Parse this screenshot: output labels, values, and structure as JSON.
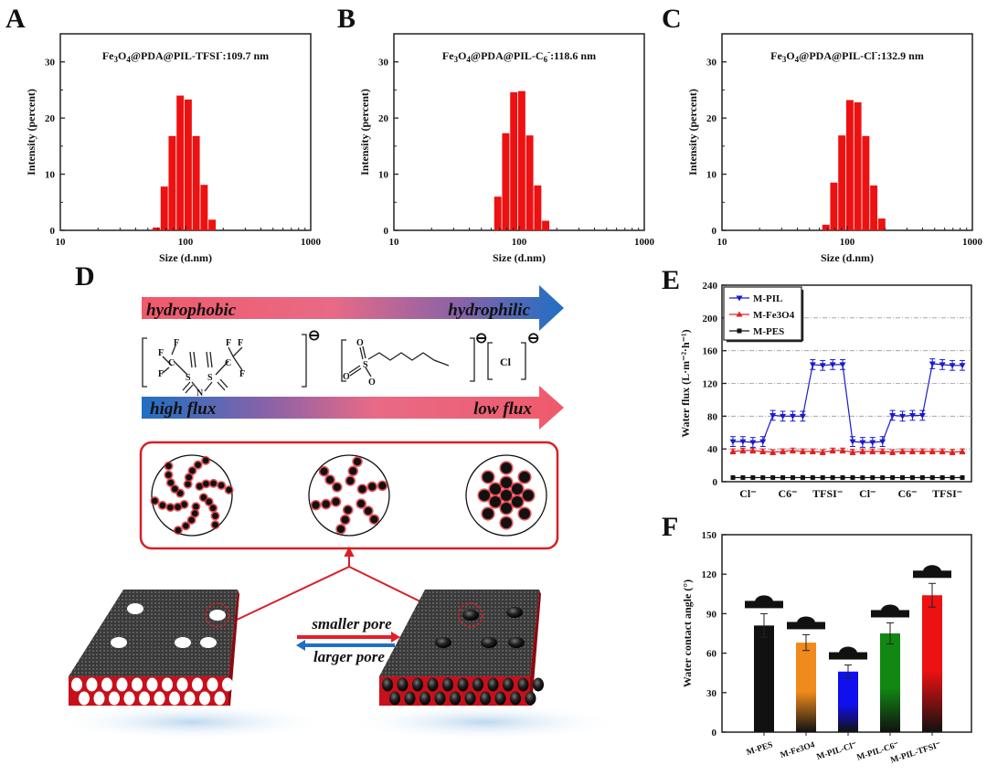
{
  "panels": {
    "A": "A",
    "B": "B",
    "C": "C",
    "D": "D",
    "E": "E",
    "F": "F"
  },
  "chart_data": [
    {
      "id": "A",
      "type": "bar",
      "title": "Fe3O4@PDA@PIL-TFSI⁻:109.7 nm",
      "title_parts": {
        "pre": "Fe",
        "s1": "3",
        "mid": "O",
        "s2": "4",
        "post": "@PDA@PIL-TFSI",
        "sup": "-",
        "tail": ":109.7 nm"
      },
      "xlabel": "Size (d.nm)",
      "ylabel": "Intensity (percent)",
      "xscale": "log",
      "xlim": [
        10,
        1000
      ],
      "ylim": [
        0,
        35
      ],
      "xticks": [
        "10",
        "100",
        "1000"
      ],
      "yticks": [
        0,
        10,
        20,
        30
      ],
      "bar_color": "#ee1111",
      "x": [
        58.8,
        68.1,
        78.8,
        91.3,
        105.7,
        122.4,
        141.8,
        164.2
      ],
      "values": [
        0.5,
        7.8,
        16.8,
        24.0,
        23.3,
        16.8,
        8.1,
        1.9
      ]
    },
    {
      "id": "B",
      "type": "bar",
      "title": "Fe3O4@PDA@PIL-C6⁻:118.6 nm",
      "title_parts": {
        "pre": "Fe",
        "s1": "3",
        "mid": "O",
        "s2": "4",
        "post": "@PDA@PIL-C",
        "sub6": "6",
        "sup": "-",
        "tail": ":118.6 nm"
      },
      "xlabel": "Size (d.nm)",
      "ylabel": "Intensity (percent)",
      "xscale": "log",
      "xlim": [
        10,
        1000
      ],
      "ylim": [
        0,
        35
      ],
      "xticks": [
        "10",
        "100",
        "1000"
      ],
      "yticks": [
        0,
        10,
        20,
        30
      ],
      "bar_color": "#ee1111",
      "x": [
        68.1,
        78.8,
        91.3,
        105.7,
        122.4,
        141.8,
        164.2
      ],
      "values": [
        6.0,
        17.3,
        24.6,
        24.8,
        16.9,
        8.0,
        1.7
      ]
    },
    {
      "id": "C",
      "type": "bar",
      "title": "Fe3O4@PDA@PIL-Cl⁻:132.9 nm",
      "title_parts": {
        "pre": "Fe",
        "s1": "3",
        "mid": "O",
        "s2": "4",
        "post": "@PDA@PIL-Cl",
        "sup": "-",
        "tail": ":132.9 nm"
      },
      "xlabel": "Size (d.nm)",
      "ylabel": "Intensity (percent)",
      "xscale": "log",
      "xlim": [
        10,
        1000
      ],
      "ylim": [
        0,
        35
      ],
      "xticks": [
        "10",
        "100",
        "1000"
      ],
      "yticks": [
        0,
        10,
        20,
        30
      ],
      "bar_color": "#ee1111",
      "x": [
        68.1,
        78.8,
        91.3,
        105.7,
        122.4,
        141.8,
        164.2,
        190.1
      ],
      "values": [
        1.0,
        8.5,
        16.9,
        23.2,
        22.8,
        16.8,
        8.0,
        2.1
      ]
    },
    {
      "id": "E",
      "type": "line",
      "xlabel": "",
      "ylabel": "Water flux (L·m⁻²·h⁻¹)",
      "ylim": [
        0,
        240
      ],
      "yticks": [
        0,
        40,
        80,
        120,
        160,
        200,
        240
      ],
      "grid": "dash-dot horizontal",
      "legend_position": "top-left",
      "categories": [
        "Cl⁻",
        "C6⁻",
        "TFSI⁻",
        "Cl⁻",
        "C6⁻",
        "TFSI⁻"
      ],
      "points_per_category": 4,
      "series": [
        {
          "name": "M-PIL",
          "color": "#1a1acc",
          "marker": "triangle-down",
          "values": [
            49,
            49,
            48,
            49,
            81,
            80,
            80,
            80,
            143,
            142,
            143,
            143,
            49,
            48,
            48,
            49,
            81,
            80,
            81,
            81,
            144,
            143,
            142,
            142
          ],
          "error": 6
        },
        {
          "name": "M-Fe3O4",
          "color": "#e02020",
          "marker": "triangle-up",
          "values": [
            37,
            38,
            38,
            37,
            36,
            37,
            38,
            37,
            37,
            36,
            38,
            38,
            36,
            37,
            37,
            37,
            36,
            37,
            37,
            37,
            37,
            37,
            36,
            37
          ],
          "error": 3
        },
        {
          "name": "M-PES",
          "color": "#111111",
          "marker": "square",
          "values": [
            5,
            5,
            5,
            5,
            5,
            5,
            5,
            5,
            5,
            5,
            5,
            5,
            5,
            5,
            5,
            5,
            5,
            5,
            5,
            5,
            5,
            5,
            5,
            5
          ],
          "error": 0
        }
      ]
    },
    {
      "id": "F",
      "type": "bar",
      "xlabel": "",
      "ylabel": "Water contact angle (°)",
      "ylim": [
        0,
        150
      ],
      "yticks": [
        0,
        30,
        60,
        90,
        120,
        150
      ],
      "categories": [
        "M-PES",
        "M-Fe3O4",
        "M-PIL-Cl⁻",
        "M-PIL-C6⁻",
        "M-PIL-TFSI⁻"
      ],
      "values": [
        81,
        68,
        46,
        75,
        104
      ],
      "errors": [
        9,
        6,
        5,
        8,
        9
      ],
      "colors": [
        "#111111",
        "#f08a1c",
        "#1010ee",
        "#118811",
        "#ee1111"
      ],
      "annotations": "water droplet images above each bar"
    }
  ],
  "diagram_D": {
    "arrow_top": {
      "left": "hydrophobic",
      "right": "hydrophilic"
    },
    "arrow_bottom": {
      "left": "high flux",
      "right": "low flux"
    },
    "anions": [
      "TFSI⁻",
      "hexanesulfonate (C6⁻)",
      "Cl"
    ],
    "anion_cl_label": "Cl",
    "minus_sign": "⊖",
    "pore_labels": {
      "forward": "smaller pore",
      "backward": "larger pore"
    },
    "colors": {
      "red": "#f05a6a",
      "blue": "#1f6fc4",
      "accent_red": "#d91f26"
    }
  }
}
